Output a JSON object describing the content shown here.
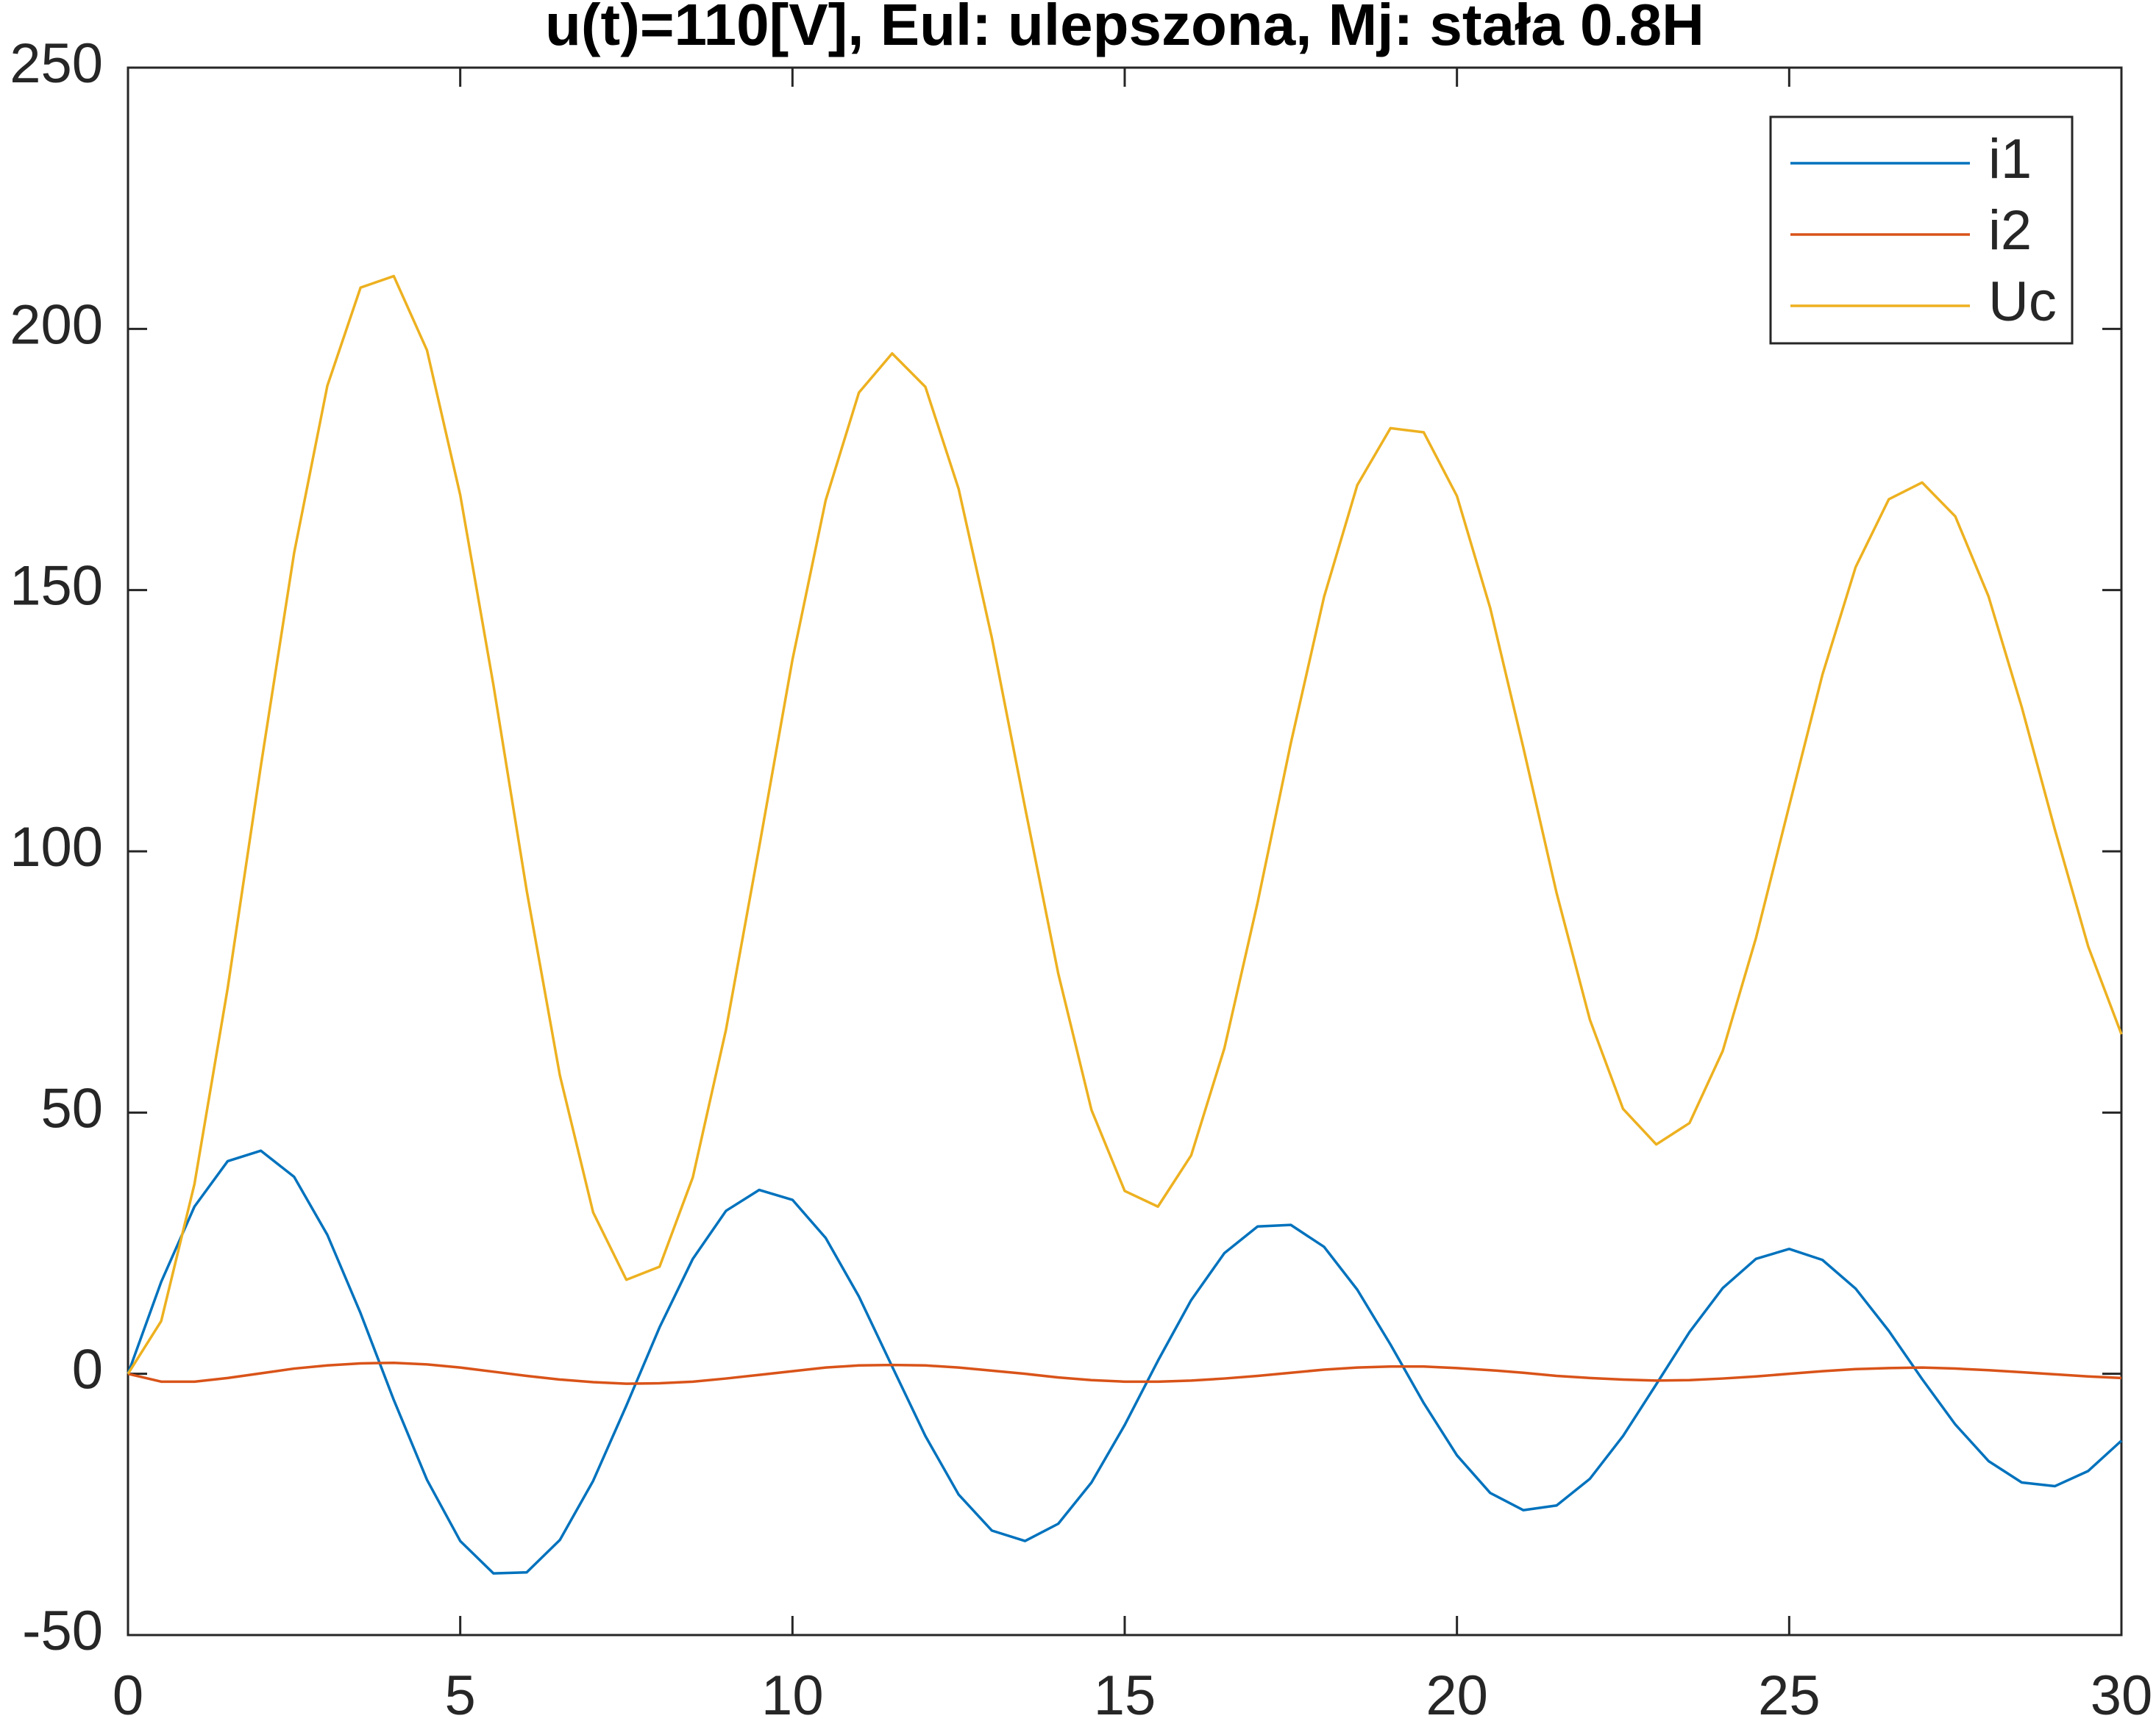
{
  "chart_data": {
    "type": "line",
    "title": "u(t)=110[V], Eul: ulepszona, Mj: stała 0.8H",
    "x": [
      0,
      0.5,
      1,
      1.5,
      2,
      2.5,
      3,
      3.5,
      4,
      4.5,
      5,
      5.5,
      6,
      6.5,
      7,
      7.5,
      8,
      8.5,
      9,
      9.5,
      10,
      10.5,
      11,
      11.5,
      12,
      12.5,
      13,
      13.5,
      14,
      14.5,
      15,
      15.5,
      16,
      16.5,
      17,
      17.5,
      18,
      18.5,
      19,
      19.5,
      20,
      20.5,
      21,
      21.5,
      22,
      22.5,
      23,
      23.5,
      24,
      24.5,
      25,
      25.5,
      26,
      26.5,
      27,
      27.5,
      28,
      28.5,
      29,
      29.5,
      30
    ],
    "series": [
      {
        "name": "i1",
        "color": "#0072BD",
        "values": [
          0,
          17.6,
          32.0,
          40.7,
          42.7,
          37.7,
          26.6,
          11.6,
          -5.0,
          -20.3,
          -32.0,
          -38.2,
          -38.0,
          -31.8,
          -20.5,
          -6.1,
          8.9,
          22.0,
          31.2,
          35.2,
          33.3,
          26.0,
          14.8,
          1.4,
          -11.9,
          -23.1,
          -30.0,
          -32.0,
          -28.7,
          -20.8,
          -9.8,
          2.5,
          14.1,
          23.1,
          28.2,
          28.5,
          24.3,
          16.1,
          5.6,
          -5.6,
          -15.6,
          -22.8,
          -26.1,
          -25.2,
          -20.1,
          -11.9,
          -2.0,
          8.0,
          16.4,
          22.0,
          23.9,
          21.8,
          16.3,
          8.2,
          -1.0,
          -9.7,
          -16.7,
          -20.8,
          -21.5,
          -18.6,
          -12.8
        ]
      },
      {
        "name": "i2",
        "color": "#D95319",
        "values": [
          0,
          -1.5,
          -1.5,
          -0.8,
          0.1,
          1.0,
          1.6,
          2.0,
          2.1,
          1.8,
          1.2,
          0.4,
          -0.4,
          -1.1,
          -1.6,
          -1.9,
          -1.8,
          -1.5,
          -0.9,
          -0.2,
          0.5,
          1.2,
          1.6,
          1.7,
          1.6,
          1.2,
          0.6,
          0.0,
          -0.7,
          -1.2,
          -1.5,
          -1.5,
          -1.3,
          -0.9,
          -0.4,
          0.2,
          0.8,
          1.2,
          1.4,
          1.4,
          1.1,
          0.7,
          0.2,
          -0.4,
          -0.8,
          -1.1,
          -1.3,
          -1.2,
          -0.9,
          -0.5,
          0.0,
          0.5,
          0.9,
          1.1,
          1.2,
          1.0,
          0.7,
          0.3,
          -0.1,
          -0.5,
          -0.8
        ]
      },
      {
        "name": "Uc",
        "color": "#EDB120",
        "values": [
          0,
          10.1,
          36.3,
          73.8,
          116.4,
          157.1,
          189.1,
          207.9,
          210.1,
          195.9,
          168.2,
          131.8,
          92.5,
          57.1,
          30.9,
          18.0,
          20.5,
          37.6,
          65.9,
          100.9,
          136.7,
          167.2,
          187.8,
          195.3,
          188.9,
          169.4,
          140.9,
          108.4,
          76.6,
          50.5,
          35.0,
          32.0,
          41.8,
          62.3,
          90.2,
          120.7,
          148.7,
          170.1,
          181.0,
          180.2,
          168.0,
          146.6,
          119.8,
          92.0,
          67.8,
          50.7,
          43.9,
          48.0,
          61.8,
          83.4,
          108.7,
          133.8,
          154.4,
          167.4,
          170.6,
          164.1,
          148.8,
          127.6,
          104.1,
          81.8,
          65.0
        ]
      }
    ],
    "xlim": [
      0,
      30
    ],
    "xticks": [
      0,
      5,
      10,
      15,
      20,
      25,
      30
    ],
    "ylim": [
      -50,
      250
    ],
    "yticks": [
      -50,
      0,
      50,
      100,
      150,
      200,
      250
    ],
    "grid": false,
    "legend": "northeast"
  }
}
